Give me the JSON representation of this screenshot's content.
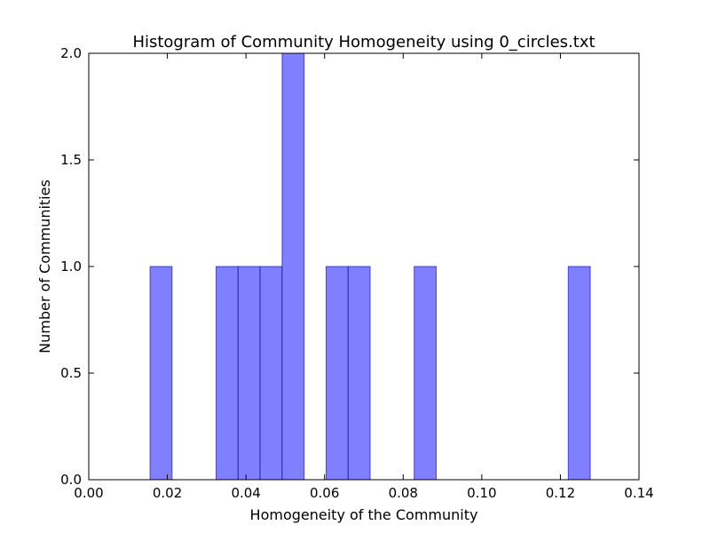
{
  "chart_data": {
    "type": "bar",
    "title": "Histogram of Community Homogeneity using 0_circles.txt",
    "xlabel": "Homogeneity of the Community",
    "ylabel": "Number of Communities",
    "xlim": [
      0.0,
      0.14
    ],
    "ylim": [
      0.0,
      2.0
    ],
    "xticks": [
      "0.00",
      "0.02",
      "0.04",
      "0.06",
      "0.08",
      "0.10",
      "0.12",
      "0.14"
    ],
    "yticks": [
      "0.0",
      "0.5",
      "1.0",
      "1.5",
      "2.0"
    ],
    "bar_color": "#7f7fff",
    "edge_color": "#00007f",
    "bins": [
      {
        "start": 0.0156,
        "end": 0.0212,
        "count": 1
      },
      {
        "start": 0.0324,
        "end": 0.038,
        "count": 1
      },
      {
        "start": 0.038,
        "end": 0.0436,
        "count": 1
      },
      {
        "start": 0.0436,
        "end": 0.0492,
        "count": 1
      },
      {
        "start": 0.0492,
        "end": 0.0548,
        "count": 2
      },
      {
        "start": 0.0604,
        "end": 0.066,
        "count": 1
      },
      {
        "start": 0.066,
        "end": 0.0716,
        "count": 1
      },
      {
        "start": 0.0828,
        "end": 0.0884,
        "count": 1
      },
      {
        "start": 0.122,
        "end": 0.1276,
        "count": 1
      }
    ]
  }
}
